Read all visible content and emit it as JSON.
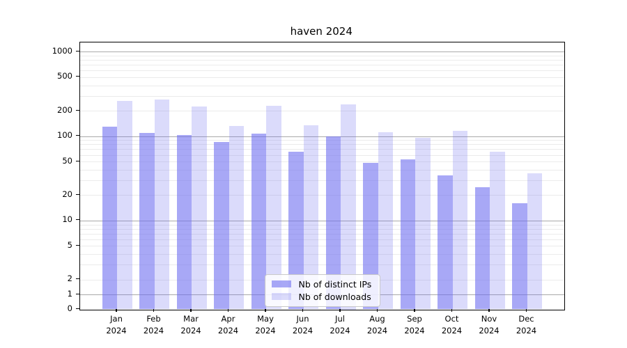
{
  "chart_data": {
    "type": "bar",
    "title": "haven 2024",
    "categories": [
      "Jan",
      "Feb",
      "Mar",
      "Apr",
      "May",
      "Jun",
      "Jul",
      "Aug",
      "Sep",
      "Oct",
      "Nov",
      "Dec"
    ],
    "x_year": "2024",
    "series": [
      {
        "name": "Nb of distinct IPs",
        "color": "rgba(110,110,240,0.6)",
        "color_hex": "#a8a8f6",
        "values": [
          130,
          110,
          103,
          85,
          108,
          65,
          100,
          48,
          53,
          34,
          25,
          16
        ]
      },
      {
        "name": "Nb of downloads",
        "color": "rgba(110,110,240,0.25)",
        "color_hex": "#dbdbfb",
        "values": [
          260,
          270,
          225,
          133,
          230,
          135,
          240,
          112,
          96,
          115,
          65,
          36
        ]
      }
    ],
    "yscale": "symlog",
    "yticks": [
      0,
      1,
      2,
      5,
      10,
      20,
      50,
      100,
      200,
      500,
      1000
    ],
    "ylim": [
      0,
      1300
    ],
    "grid": true,
    "legend_position": "lower center"
  },
  "colors": {
    "grid_major": "#a9a9a9",
    "grid_minor": "#ebebeb",
    "axis": "#000000",
    "background": "#ffffff"
  }
}
